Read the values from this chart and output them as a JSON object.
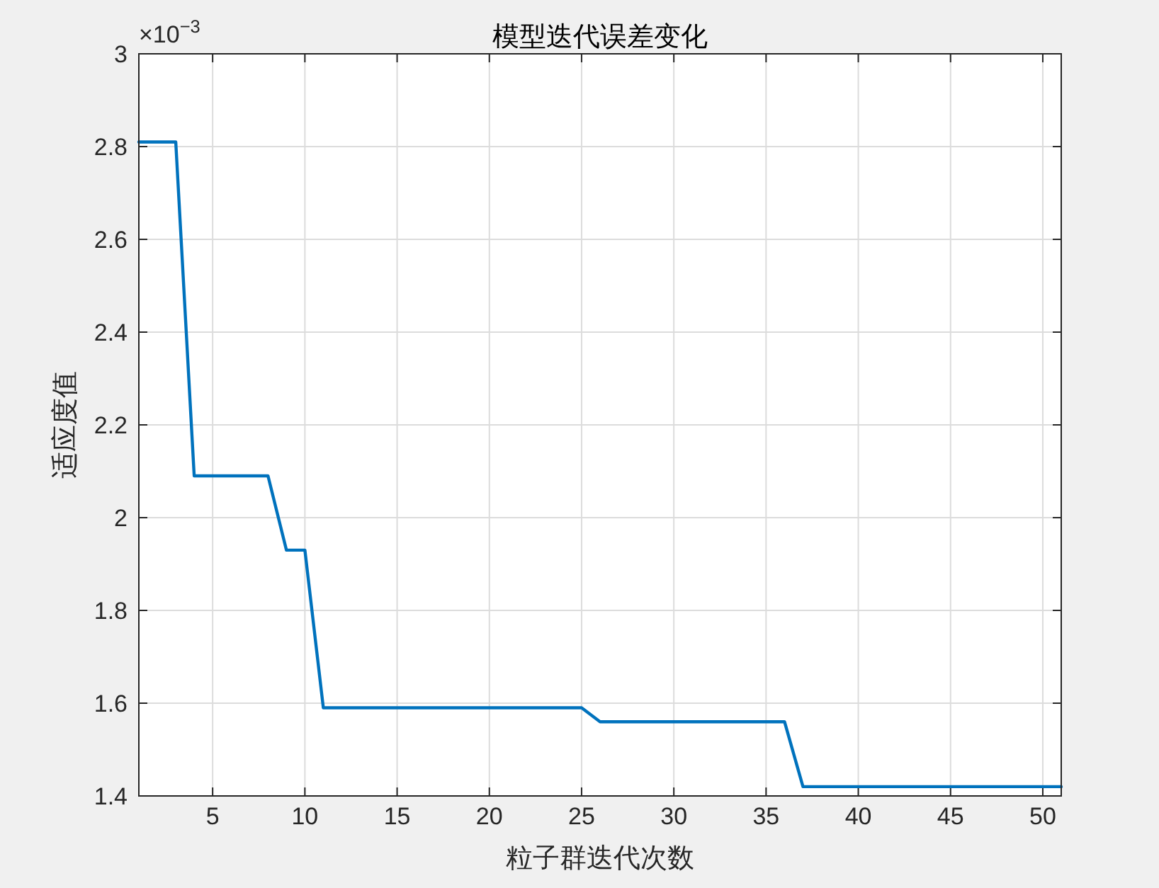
{
  "chart_data": {
    "type": "line",
    "title": "模型迭代误差变化",
    "xlabel": "粒子群迭代次数",
    "ylabel": "适应度值",
    "annotations": [
      "×10$^{−3}$"
    ],
    "series": [
      {
        "color": "#0072bd",
        "x": [
          1,
          2,
          3,
          4,
          5,
          6,
          7,
          8,
          9,
          10,
          11,
          12,
          13,
          14,
          15,
          16,
          17,
          18,
          19,
          20,
          21,
          22,
          23,
          24,
          25,
          26,
          27,
          28,
          29,
          30,
          31,
          32,
          33,
          34,
          35,
          36,
          37,
          38,
          39,
          40,
          41,
          42,
          43,
          44,
          45,
          46,
          47,
          48,
          49,
          50,
          51
        ],
        "values": [
          2.81,
          2.81,
          2.81,
          2.09,
          2.09,
          2.09,
          2.09,
          2.09,
          1.93,
          1.93,
          1.59,
          1.59,
          1.59,
          1.59,
          1.59,
          1.59,
          1.59,
          1.59,
          1.59,
          1.59,
          1.59,
          1.59,
          1.59,
          1.59,
          1.59,
          1.56,
          1.56,
          1.56,
          1.56,
          1.56,
          1.56,
          1.56,
          1.56,
          1.56,
          1.56,
          1.56,
          1.42,
          1.42,
          1.42,
          1.42,
          1.42,
          1.42,
          1.42,
          1.42,
          1.42,
          1.42,
          1.42,
          1.42,
          1.42,
          1.42,
          1.42
        ]
      }
    ],
    "xlim": [
      1,
      51
    ],
    "xticks": [
      5,
      10,
      15,
      20,
      25,
      30,
      35,
      40,
      45,
      50
    ],
    "ylim": [
      1.4,
      3
    ],
    "yticks": [
      1.4,
      1.6,
      1.8,
      2,
      2.2,
      2.4,
      2.6,
      2.8,
      3
    ],
    "grid": true,
    "line_style": "solid",
    "marker": "none"
  }
}
